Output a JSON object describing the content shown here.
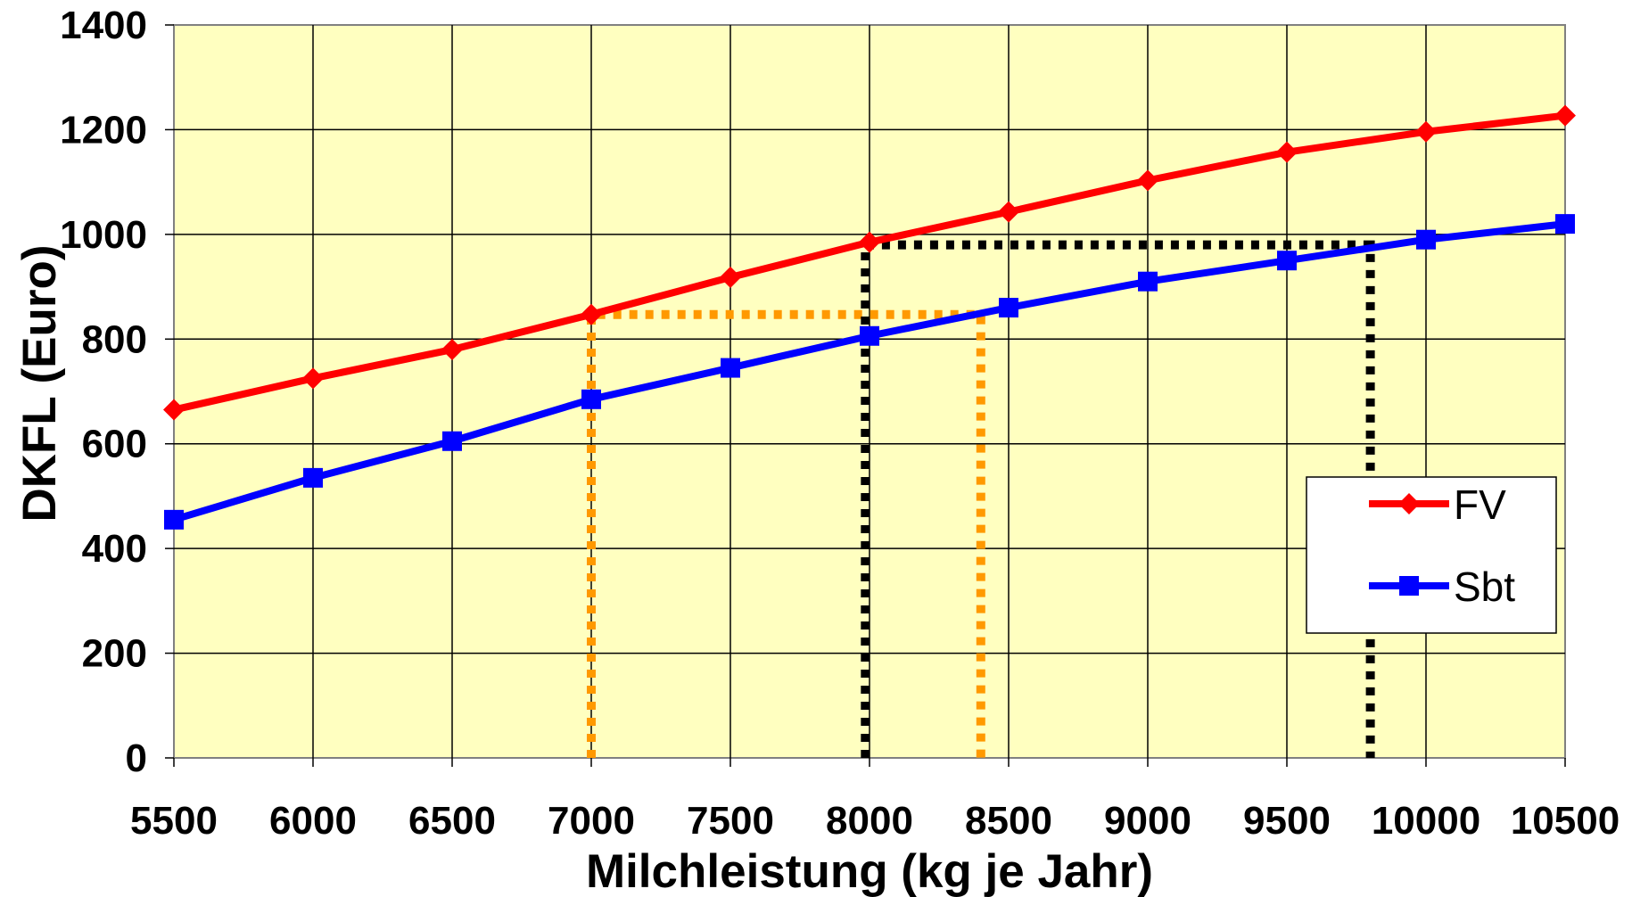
{
  "chart_data": {
    "type": "line",
    "xlabel": "Milchleistung (kg je Jahr)",
    "ylabel": "DKFL (Euro)",
    "x": [
      5500,
      6000,
      6500,
      7000,
      7500,
      8000,
      8500,
      9000,
      9500,
      10000,
      10500
    ],
    "xlim": [
      5500,
      10500
    ],
    "ylim": [
      0,
      1400
    ],
    "xticks": [
      "5500",
      "6000",
      "6500",
      "7000",
      "7500",
      "8000",
      "8500",
      "9000",
      "9500",
      "10000",
      "10500"
    ],
    "yticks": [
      "0",
      "200",
      "400",
      "600",
      "800",
      "1000",
      "1200",
      "1400"
    ],
    "grid": true,
    "legend_position": "right",
    "plot_background": "#FFFFC0",
    "series": [
      {
        "name": "FV",
        "color": "#FF0000",
        "marker": "diamond",
        "values": [
          665,
          725,
          780,
          847,
          918,
          985,
          1043,
          1103,
          1157,
          1196,
          1227
        ]
      },
      {
        "name": "Sbt",
        "color": "#0000FF",
        "marker": "square",
        "values": [
          455,
          535,
          605,
          685,
          745,
          806,
          860,
          910,
          950,
          990,
          1020
        ]
      }
    ],
    "reference_lines": [
      {
        "color": "#FF9900",
        "style": "dotted",
        "points": [
          [
            7000,
            0
          ],
          [
            7000,
            847
          ],
          [
            8400,
            847
          ],
          [
            8400,
            0
          ]
        ]
      },
      {
        "color": "#000000",
        "style": "dotted",
        "points": [
          [
            7985,
            0
          ],
          [
            7985,
            980
          ],
          [
            9800,
            980
          ],
          [
            9800,
            0
          ]
        ]
      }
    ]
  }
}
